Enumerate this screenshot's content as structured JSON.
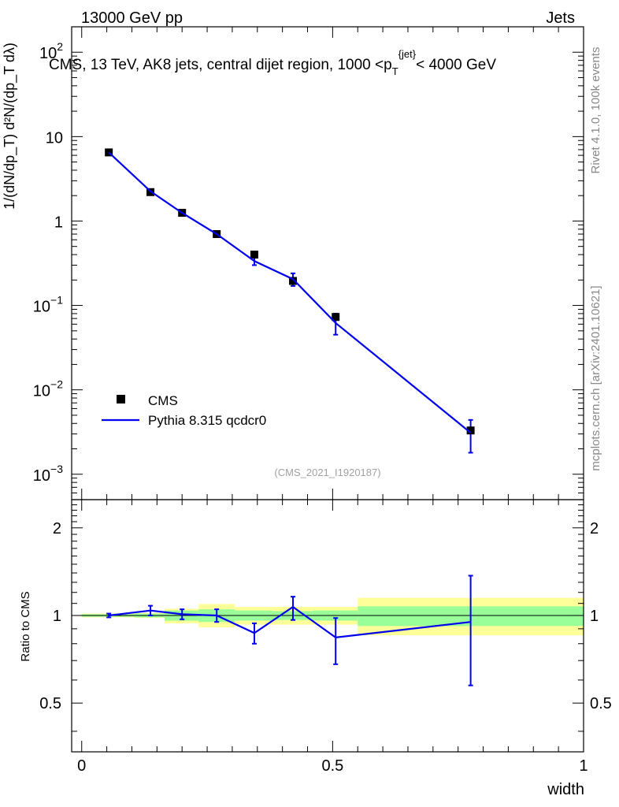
{
  "header": {
    "left": "13000 GeV pp",
    "right": "Jets"
  },
  "side_labels": {
    "rivet": "Rivet 4.1.0,  100k events",
    "mcplots": "mcplots.cern.ch [arXiv:2401.10621]"
  },
  "watermark": "(CMS_2021_I1920187)",
  "chart_data": [
    {
      "type": "line",
      "panel": "main",
      "title": "CMS, 13 TeV, AK8 jets, central dijet region, 1000 <p_T^{jet}< 4000 GeV",
      "ylabel": "1/(dN/dp_T) d²N/(dp_T dλ)",
      "xlabel": "width",
      "yscale": "log",
      "xlim": [
        -0.02,
        1.0
      ],
      "ylim": [
        0.0005,
        200
      ],
      "y_ticks": [
        {
          "value": 100,
          "base": "10",
          "exp": "2"
        },
        {
          "value": 10,
          "base": "10",
          "exp": ""
        },
        {
          "value": 1,
          "base": "1",
          "exp": ""
        },
        {
          "value": 0.1,
          "base": "10",
          "exp": "−1"
        },
        {
          "value": 0.01,
          "base": "10",
          "exp": "−2"
        },
        {
          "value": 0.001,
          "base": "10",
          "exp": "−3"
        }
      ],
      "legend": [
        "CMS",
        "Pythia 8.315 qcdcr0"
      ],
      "series": [
        {
          "name": "CMS",
          "style": "markers",
          "color": "#000000",
          "x": [
            0.054,
            0.137,
            0.2,
            0.269,
            0.344,
            0.421,
            0.506,
            0.775
          ],
          "y": [
            6.5,
            2.2,
            1.25,
            0.7,
            0.4,
            0.195,
            0.073,
            0.0033
          ]
        },
        {
          "name": "Pythia 8.315 qcdcr0",
          "style": "line",
          "color": "#0000ee",
          "x": [
            0.054,
            0.137,
            0.2,
            0.269,
            0.344,
            0.421,
            0.506,
            0.775
          ],
          "y": [
            6.5,
            2.25,
            1.25,
            0.7,
            0.335,
            0.205,
            0.062,
            0.0031
          ],
          "err_low": [
            6.3,
            2.15,
            1.2,
            0.67,
            0.3,
            0.17,
            0.045,
            0.0018
          ],
          "err_high": [
            6.7,
            2.35,
            1.3,
            0.73,
            0.37,
            0.24,
            0.08,
            0.0044
          ]
        }
      ]
    },
    {
      "type": "line",
      "panel": "ratio",
      "ylabel": "Ratio to CMS",
      "xlabel": "width",
      "xlim": [
        -0.02,
        1.0
      ],
      "ylim": [
        0.34,
        2.5
      ],
      "y_ticks": [
        {
          "value": 0.5,
          "label": "0.5"
        },
        {
          "value": 1,
          "label": "1"
        },
        {
          "value": 2,
          "label": "2"
        }
      ],
      "x_ticks": [
        {
          "value": 0,
          "label": "0"
        },
        {
          "value": 0.5,
          "label": "0.5"
        },
        {
          "value": 1,
          "label": "1"
        }
      ],
      "bands": [
        {
          "x0": 0.0,
          "x1": 0.105,
          "y_lo": 0.985,
          "y_hi": 1.015,
          "inner_lo": 0.99,
          "inner_hi": 1.01
        },
        {
          "x0": 0.105,
          "x1": 0.165,
          "y_lo": 0.98,
          "y_hi": 1.02,
          "inner_lo": 0.985,
          "inner_hi": 1.015
        },
        {
          "x0": 0.165,
          "x1": 0.233,
          "y_lo": 0.94,
          "y_hi": 1.055,
          "inner_lo": 0.96,
          "inner_hi": 1.04
        },
        {
          "x0": 0.233,
          "x1": 0.305,
          "y_lo": 0.91,
          "y_hi": 1.095,
          "inner_lo": 0.95,
          "inner_hi": 1.05
        },
        {
          "x0": 0.305,
          "x1": 0.38,
          "y_lo": 0.93,
          "y_hi": 1.07,
          "inner_lo": 0.96,
          "inner_hi": 1.04
        },
        {
          "x0": 0.38,
          "x1": 0.46,
          "y_lo": 0.93,
          "y_hi": 1.07,
          "inner_lo": 0.965,
          "inner_hi": 1.035
        },
        {
          "x0": 0.46,
          "x1": 0.55,
          "y_lo": 0.93,
          "y_hi": 1.07,
          "inner_lo": 0.96,
          "inner_hi": 1.04
        },
        {
          "x0": 0.55,
          "x1": 1.0,
          "y_lo": 0.855,
          "y_hi": 1.15,
          "inner_lo": 0.92,
          "inner_hi": 1.075
        }
      ],
      "series": [
        {
          "name": "Pythia 8.315 qcdcr0 / CMS",
          "color": "#0000ee",
          "x": [
            0.054,
            0.137,
            0.2,
            0.269,
            0.344,
            0.421,
            0.506,
            0.775
          ],
          "y": [
            1.0,
            1.04,
            1.01,
            1.0,
            0.87,
            1.07,
            0.84,
            0.95
          ],
          "err_low": [
            0.985,
            1.0,
            0.97,
            0.95,
            0.8,
            0.965,
            0.68,
            0.575
          ],
          "err_high": [
            1.015,
            1.08,
            1.05,
            1.05,
            0.94,
            1.16,
            0.98,
            1.37
          ]
        }
      ]
    }
  ]
}
